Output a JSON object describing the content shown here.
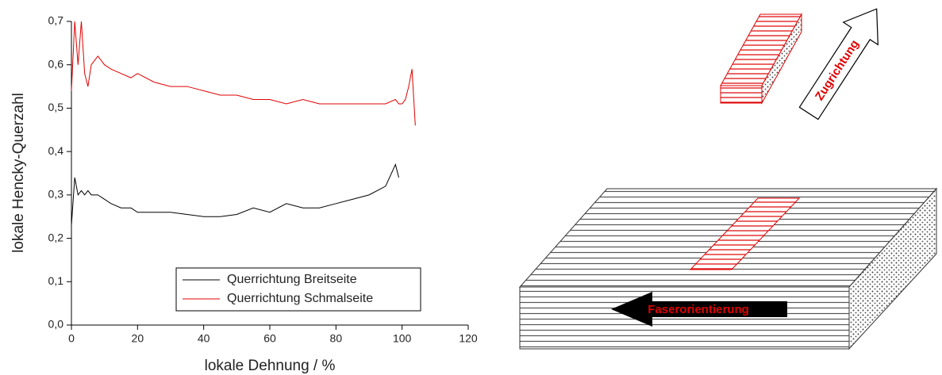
{
  "chart_data": {
    "type": "line",
    "xlabel": "lokale Dehnung  /  %",
    "ylabel": "lokale Hencky-Querzahl",
    "x": [
      0,
      1,
      2,
      3,
      4,
      5,
      6,
      8,
      10,
      12,
      15,
      18,
      20,
      25,
      30,
      35,
      40,
      45,
      50,
      55,
      60,
      65,
      70,
      75,
      80,
      85,
      90,
      95,
      98,
      99,
      100,
      101,
      102,
      103,
      104
    ],
    "series": [
      {
        "name": "Querrichtung Breitseite",
        "color": "#000000",
        "values": [
          0.23,
          0.34,
          0.3,
          0.31,
          0.3,
          0.31,
          0.3,
          0.3,
          0.29,
          0.28,
          0.27,
          0.27,
          0.26,
          0.26,
          0.26,
          0.255,
          0.25,
          0.25,
          0.255,
          0.27,
          0.26,
          0.28,
          0.27,
          0.27,
          0.28,
          0.29,
          0.3,
          0.32,
          0.37,
          0.34,
          null,
          null,
          null,
          null,
          null
        ]
      },
      {
        "name": "Querrichtung Schmalseite",
        "color": "#e00000",
        "values": [
          0.54,
          0.7,
          0.6,
          0.7,
          0.58,
          0.55,
          0.6,
          0.62,
          0.6,
          0.59,
          0.58,
          0.57,
          0.58,
          0.56,
          0.55,
          0.55,
          0.54,
          0.53,
          0.53,
          0.52,
          0.52,
          0.51,
          0.52,
          0.51,
          0.51,
          0.51,
          0.51,
          0.51,
          0.52,
          0.51,
          0.51,
          0.52,
          0.55,
          0.59,
          0.46
        ]
      }
    ],
    "xlim": [
      0,
      120
    ],
    "xticks": [
      0,
      20,
      40,
      60,
      80,
      100,
      120
    ],
    "ylim": [
      0,
      0.7
    ],
    "yticks": [
      {
        "value": 0,
        "label": "0,0"
      },
      {
        "value": 0.1,
        "label": "0,1"
      },
      {
        "value": 0.2,
        "label": "0,2"
      },
      {
        "value": 0.3,
        "label": "0,3"
      },
      {
        "value": 0.4,
        "label": "0,4"
      },
      {
        "value": 0.5,
        "label": "0,5"
      },
      {
        "value": 0.6,
        "label": "0,6"
      },
      {
        "value": 0.7,
        "label": "0,7"
      }
    ]
  },
  "diagram": {
    "pull_direction": "Zugrichtung",
    "fiber_orientation": "Faserorientierung"
  }
}
